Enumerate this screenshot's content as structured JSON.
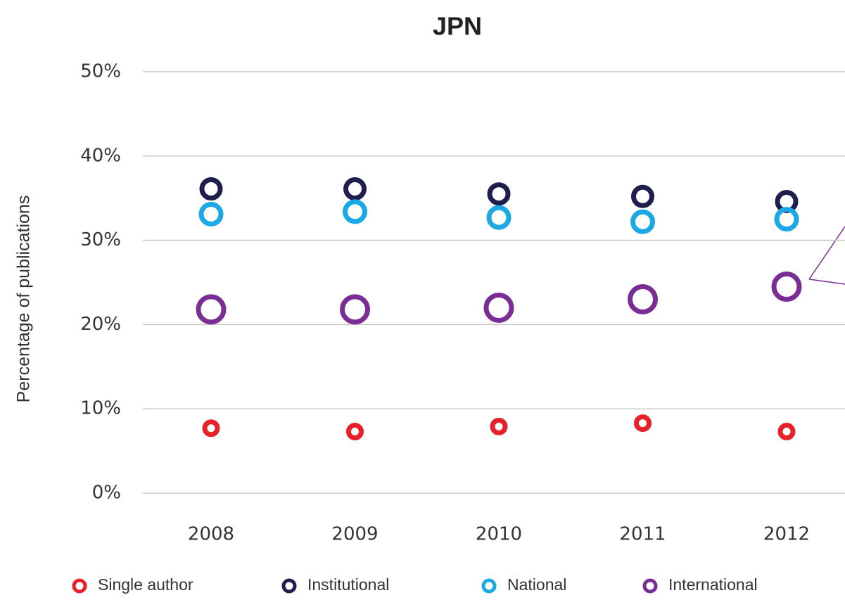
{
  "chart_data": {
    "type": "scatter",
    "title": "JPN",
    "y_label": "Percentage of publications",
    "categories": [
      "2008",
      "2009",
      "2010",
      "2011",
      "2012"
    ],
    "series": [
      {
        "name": "Single author",
        "color": "#e8202a",
        "values": [
          7.7,
          7.3,
          7.9,
          8.3,
          7.3
        ]
      },
      {
        "name": "Institutional",
        "color": "#1f1f4d",
        "values": [
          36.1,
          36.1,
          35.5,
          35.2,
          34.6
        ]
      },
      {
        "name": "National",
        "color": "#1ba8e6",
        "values": [
          33.1,
          33.4,
          32.7,
          32.2,
          32.5
        ]
      },
      {
        "name": "International",
        "color": "#7b2d96",
        "values": [
          21.8,
          21.8,
          22.0,
          23.0,
          24.5
        ]
      }
    ],
    "ylim": [
      0,
      50
    ],
    "yticks": [
      {
        "value": 0,
        "label": "0%"
      },
      {
        "value": 10,
        "label": "10%"
      },
      {
        "value": 20,
        "label": "20%"
      },
      {
        "value": 30,
        "label": "30%"
      },
      {
        "value": 40,
        "label": "40%"
      },
      {
        "value": 50,
        "label": "50%"
      }
    ],
    "grid": true,
    "legend": "bottom"
  }
}
